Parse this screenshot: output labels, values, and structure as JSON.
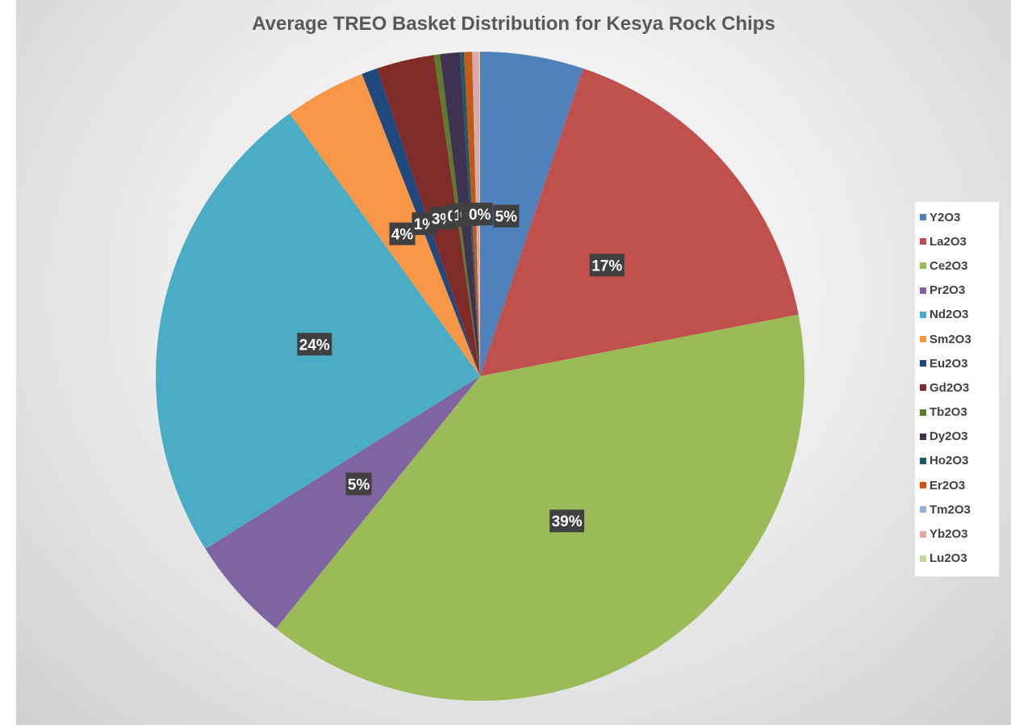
{
  "chart_data": {
    "type": "pie",
    "title": "Average TREO Basket Distribution for Kesya Rock Chips",
    "legend_position": "right",
    "categories": [
      "Y2O3",
      "La2O3",
      "Ce2O3",
      "Pr2O3",
      "Nd2O3",
      "Sm2O3",
      "Eu2O3",
      "Gd2O3",
      "Tb2O3",
      "Dy2O3",
      "Ho2O3",
      "Er2O3",
      "Tm2O3",
      "Yb2O3",
      "Lu2O3"
    ],
    "values": [
      5.2,
      17.0,
      39.3,
      5.3,
      24.2,
      4.1,
      0.8,
      2.9,
      0.3,
      1.0,
      0.2,
      0.4,
      0.05,
      0.3,
      0.05
    ],
    "colors": [
      "#4F81BD",
      "#C0504D",
      "#9BBB59",
      "#8064A2",
      "#4BACC6",
      "#F79646",
      "#1F497D",
      "#7F2B2A",
      "#5E7A2B",
      "#3F3151",
      "#205867",
      "#C65911",
      "#95B3D7",
      "#E6A5A4",
      "#C3D69B"
    ],
    "data_labels": [
      "5%",
      "17%",
      "39%",
      "5%",
      "24%",
      "4%",
      "1%",
      "3%",
      "0%",
      "1%",
      "0%",
      "0%",
      "0%",
      "0%",
      "0%"
    ]
  }
}
